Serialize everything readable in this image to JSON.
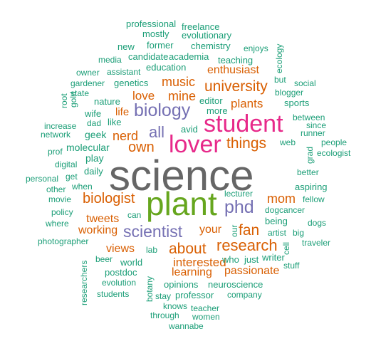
{
  "colors": {
    "teal": "#1b9e77",
    "orange": "#d95f02",
    "purple": "#7570b3",
    "magenta": "#e7298a",
    "green": "#66a61e",
    "gray": "#666666"
  },
  "words": {
    "science": "science",
    "plant": "plant",
    "lover": "lover",
    "student": "student",
    "biology": "biology",
    "phd": "phd",
    "scientist": "scientist",
    "research": "research",
    "biologist": "biologist",
    "university": "university",
    "things": "things",
    "fan": "fan",
    "about": "about",
    "all": "all",
    "own": "own",
    "music": "music",
    "mom": "mom",
    "nerd": "nerd",
    "love": "love",
    "mine": "mine",
    "plants": "plants",
    "enthusiast": "enthusiast",
    "interested": "interested",
    "tweets": "tweets",
    "working": "working",
    "views": "views",
    "learning": "learning",
    "passionate": "passionate",
    "your": "your",
    "life": "life",
    "professional": "professional",
    "freelance": "freelance",
    "mostly": "mostly",
    "evolutionary": "evolutionary",
    "new": "new",
    "former": "former",
    "chemistry": "chemistry",
    "enjoys": "enjoys",
    "media": "media",
    "candidate": "candidate",
    "academia": "academia",
    "teaching": "teaching",
    "ecology": "ecology",
    "owner": "owner",
    "assistant": "assistant",
    "education": "education",
    "gardener": "gardener",
    "genetics": "genetics",
    "state": "state",
    "but": "but",
    "social": "social",
    "editor": "editor",
    "blogger": "blogger",
    "more": "more",
    "sports": "sports",
    "nature": "nature",
    "root": "root",
    "gold": "gold",
    "wife": "wife",
    "like": "like",
    "dad": "dad",
    "increase": "increase",
    "network": "network",
    "geek": "geek",
    "avid": "avid",
    "between": "between",
    "since": "since",
    "runner": "runner",
    "web": "web",
    "people": "people",
    "grad": "grad",
    "ecologist": "ecologist",
    "prof": "prof",
    "molecular": "molecular",
    "play": "play",
    "digital": "digital",
    "daily": "daily",
    "better": "better",
    "personal": "personal",
    "get": "get",
    "other": "other",
    "when": "when",
    "aspiring": "aspiring",
    "movie": "movie",
    "lecturer": "lecturer",
    "fellow": "fellow",
    "policy": "policy",
    "can": "can",
    "dogcancer": "dogcancer",
    "where": "where",
    "our": "our",
    "being": "being",
    "dogs": "dogs",
    "artist": "artist",
    "big": "big",
    "photographer": "photographer",
    "cell": "cell",
    "traveler": "traveler",
    "lab": "lab",
    "writer": "writer",
    "beer": "beer",
    "world": "world",
    "who": "who",
    "just": "just",
    "stuff": "stuff",
    "postdoc": "postdoc",
    "evolution": "evolution",
    "opinions": "opinions",
    "neuroscience": "neuroscience",
    "researchers": "researchers",
    "students": "students",
    "botany": "botany",
    "stay": "stay",
    "professor": "professor",
    "company": "company",
    "knows": "knows",
    "teacher": "teacher",
    "through": "through",
    "women": "women",
    "wannabe": "wannabe"
  }
}
